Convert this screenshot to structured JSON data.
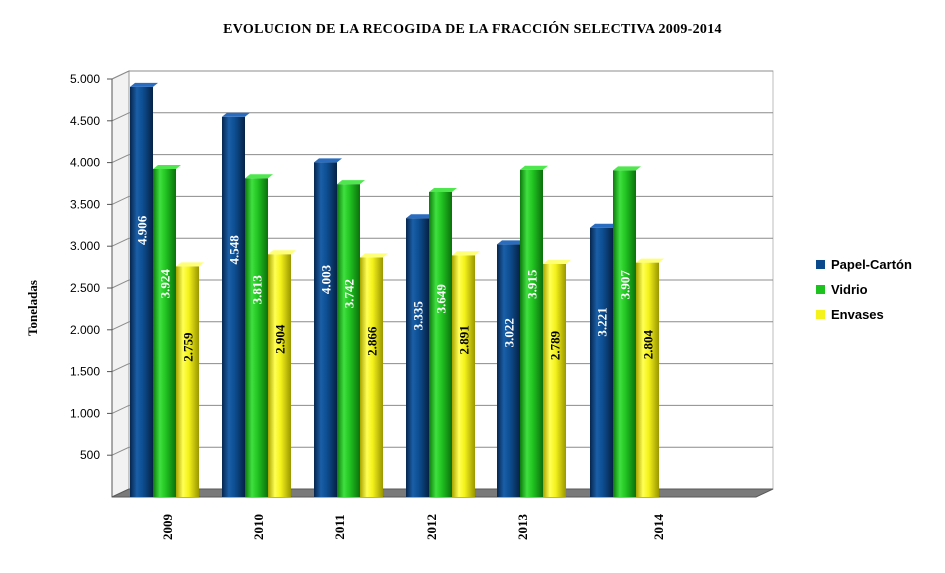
{
  "chart_data": {
    "type": "bar",
    "title": "EVOLUCION DE LA RECOGIDA DE LA FRACCIÓN SELECTIVA 2009-2014",
    "xlabel": "",
    "ylabel": "Toneladas",
    "ylim": [
      0,
      5000
    ],
    "yticks": [
      500,
      1000,
      1500,
      2000,
      2500,
      3000,
      3500,
      4000,
      4500,
      5000
    ],
    "ytick_labels": [
      "500",
      "1.000",
      "1.500",
      "2.000",
      "2.500",
      "3.000",
      "3.500",
      "4.000",
      "4.500",
      "5.000"
    ],
    "categories": [
      "2009",
      "2010",
      "2011",
      "2012",
      "2013",
      "2014"
    ],
    "grid": true,
    "legend_position": "right",
    "series": [
      {
        "name": "Papel-Cartón",
        "color": "#0a4a8c",
        "values": [
          4906,
          4548,
          4003,
          3335,
          3022,
          3221
        ],
        "labels": [
          "4.906",
          "4.548",
          "4.003",
          "3.335",
          "3.022",
          "3.221"
        ]
      },
      {
        "name": "Vidrio",
        "color": "#1ec21e",
        "values": [
          3924,
          3813,
          3742,
          3649,
          3915,
          3907
        ],
        "labels": [
          "3.924",
          "3.813",
          "3.742",
          "3.649",
          "3.915",
          "3.907"
        ]
      },
      {
        "name": "Envases",
        "color": "#f4f21a",
        "values": [
          2759,
          2904,
          2866,
          2891,
          2789,
          2804
        ],
        "labels": [
          "2.759",
          "2.904",
          "2.866",
          "2.891",
          "2.789",
          "2.804"
        ]
      }
    ]
  }
}
